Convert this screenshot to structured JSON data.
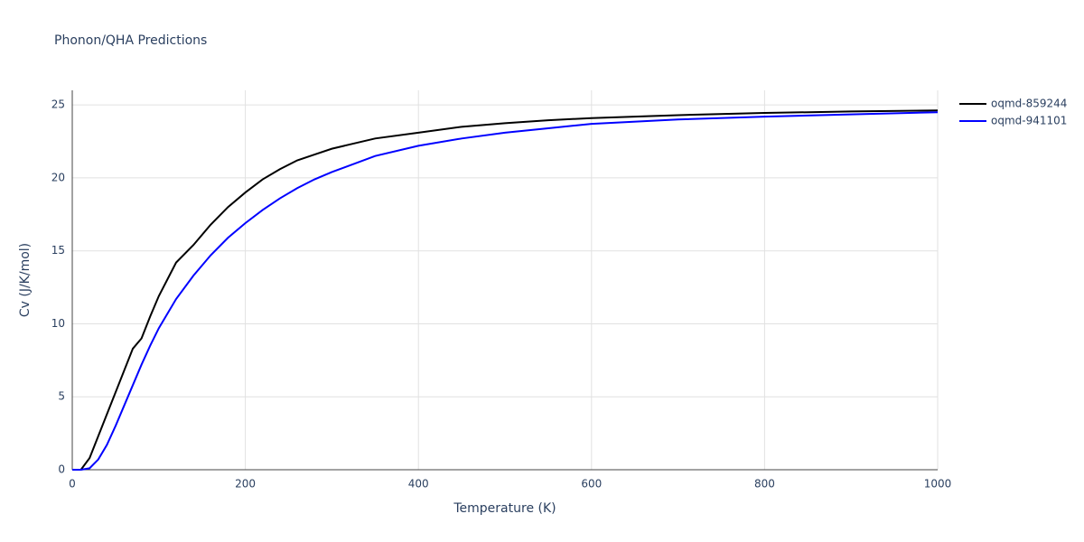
{
  "chart_data": {
    "type": "line",
    "title": "Phonon/QHA Predictions",
    "x_label": "Temperature (K)",
    "y_label": "Cv (J/K/mol)",
    "x": [
      0,
      10,
      20,
      30,
      40,
      50,
      60,
      70,
      80,
      90,
      100,
      120,
      140,
      160,
      180,
      200,
      220,
      240,
      260,
      280,
      300,
      350,
      400,
      450,
      500,
      550,
      600,
      700,
      800,
      900,
      1000
    ],
    "series": [
      {
        "name": "oqmd-859244",
        "color": "#000000",
        "values": [
          0,
          0,
          0.8,
          2.3,
          3.8,
          5.3,
          6.8,
          8.3,
          9.0,
          10.5,
          11.9,
          14.2,
          15.4,
          16.8,
          18.0,
          19.0,
          19.9,
          20.6,
          21.2,
          21.6,
          22.0,
          22.7,
          23.1,
          23.5,
          23.75,
          23.95,
          24.1,
          24.3,
          24.45,
          24.55,
          24.62
        ]
      },
      {
        "name": "oqmd-941101",
        "color": "#0000ff",
        "values": [
          0,
          0,
          0.1,
          0.7,
          1.7,
          3.0,
          4.4,
          5.8,
          7.2,
          8.5,
          9.7,
          11.7,
          13.3,
          14.7,
          15.9,
          16.9,
          17.8,
          18.6,
          19.3,
          19.9,
          20.4,
          21.5,
          22.2,
          22.7,
          23.1,
          23.4,
          23.7,
          24.0,
          24.2,
          24.35,
          24.5
        ]
      }
    ],
    "xlim": [
      0,
      1000
    ],
    "xticks": [
      0,
      200,
      400,
      600,
      800,
      1000
    ],
    "ylim": [
      0,
      26
    ],
    "yticks": [
      0,
      5,
      10,
      15,
      20,
      25
    ],
    "grid": true,
    "legend": "right"
  }
}
